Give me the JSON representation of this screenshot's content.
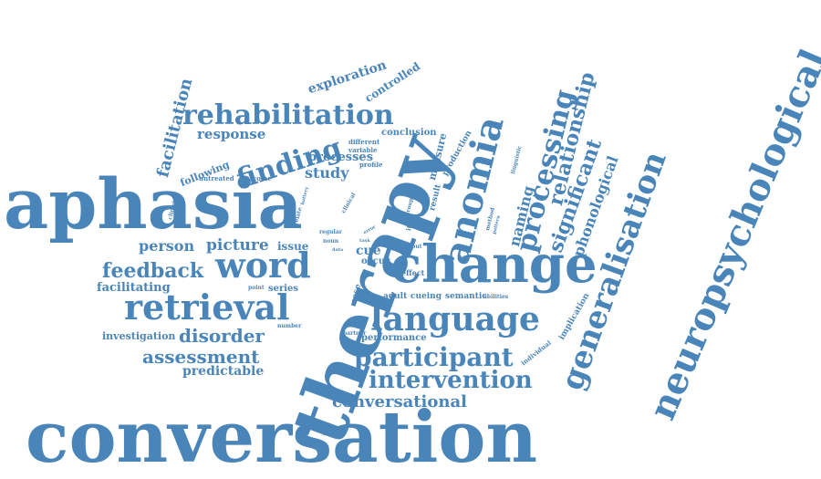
{
  "colors": {
    "word": "#4a85b9",
    "background": "#ffffff"
  },
  "words": [
    {
      "id": "conversation",
      "text": "conversation"
    },
    {
      "id": "therapy",
      "text": "therapy"
    },
    {
      "id": "aphasia",
      "text": "aphasia"
    },
    {
      "id": "change",
      "text": "change"
    },
    {
      "id": "neuropsychological",
      "text": "neuropsychological"
    },
    {
      "id": "anomia",
      "text": "anomia"
    },
    {
      "id": "generalisation",
      "text": "generalisation"
    },
    {
      "id": "language",
      "text": "language"
    },
    {
      "id": "retrieval",
      "text": "retrieval"
    },
    {
      "id": "word",
      "text": "word"
    },
    {
      "id": "rehabilitation",
      "text": "rehabilitation"
    },
    {
      "id": "processing",
      "text": "processing"
    },
    {
      "id": "participant",
      "text": "participant"
    },
    {
      "id": "intervention",
      "text": "intervention"
    },
    {
      "id": "finding",
      "text": "finding"
    },
    {
      "id": "feedback",
      "text": "feedback"
    },
    {
      "id": "relationship",
      "text": "relationship"
    },
    {
      "id": "significant",
      "text": "significant"
    },
    {
      "id": "conversational",
      "text": "conversational"
    },
    {
      "id": "disorder",
      "text": "disorder"
    },
    {
      "id": "assessment",
      "text": "assessment"
    },
    {
      "id": "picture",
      "text": "picture"
    },
    {
      "id": "naming",
      "text": "naming"
    },
    {
      "id": "phonological",
      "text": "phonological"
    },
    {
      "id": "facilitation",
      "text": "facilitation"
    },
    {
      "id": "person",
      "text": "person"
    },
    {
      "id": "predictable",
      "text": "predictable"
    },
    {
      "id": "study",
      "text": "study"
    },
    {
      "id": "exploration",
      "text": "exploration"
    },
    {
      "id": "response",
      "text": "response"
    },
    {
      "id": "processes",
      "text": "processes"
    },
    {
      "id": "controlled",
      "text": "controlled"
    },
    {
      "id": "facilitating",
      "text": "facilitating"
    },
    {
      "id": "investigation",
      "text": "investigation"
    },
    {
      "id": "issue",
      "text": "issue"
    },
    {
      "id": "cue",
      "text": "cue"
    },
    {
      "id": "following",
      "text": "following"
    },
    {
      "id": "conclusion",
      "text": "conclusion"
    },
    {
      "id": "measure",
      "text": "measure"
    },
    {
      "id": "production",
      "text": "production"
    },
    {
      "id": "performance",
      "text": "performance"
    },
    {
      "id": "occur",
      "text": "occur"
    },
    {
      "id": "implication",
      "text": "implication"
    },
    {
      "id": "series",
      "text": "series"
    },
    {
      "id": "cueing",
      "text": "cueing"
    },
    {
      "id": "semantic",
      "text": "semantic"
    },
    {
      "id": "adult",
      "text": "adult"
    },
    {
      "id": "effect",
      "text": "effect"
    },
    {
      "id": "case",
      "text": "case"
    },
    {
      "id": "result",
      "text": "result"
    },
    {
      "id": "profile",
      "text": "profile"
    },
    {
      "id": "untreated",
      "text": "untreated"
    },
    {
      "id": "outcome",
      "text": "outcome"
    },
    {
      "id": "different",
      "text": "different"
    },
    {
      "id": "variable",
      "text": "variable"
    },
    {
      "id": "clinician",
      "text": "clinician"
    },
    {
      "id": "item",
      "text": "item"
    },
    {
      "id": "group",
      "text": "group"
    },
    {
      "id": "point",
      "text": "point"
    },
    {
      "id": "number",
      "text": "number"
    },
    {
      "id": "abilities",
      "text": "abilities"
    },
    {
      "id": "individual",
      "text": "individual"
    },
    {
      "id": "linguistic",
      "text": "linguistic"
    },
    {
      "id": "method",
      "text": "method"
    },
    {
      "id": "pattern",
      "text": "pattern"
    },
    {
      "id": "clinical",
      "text": "clinical"
    },
    {
      "id": "relate",
      "text": "relate"
    },
    {
      "id": "battery",
      "text": "battery"
    },
    {
      "id": "regular",
      "text": "regular"
    },
    {
      "id": "noun",
      "text": "noun"
    },
    {
      "id": "output",
      "text": "output"
    },
    {
      "id": "data",
      "text": "data"
    },
    {
      "id": "partner",
      "text": "partner"
    },
    {
      "id": "task",
      "text": "task"
    },
    {
      "id": "error",
      "text": "error"
    }
  ]
}
